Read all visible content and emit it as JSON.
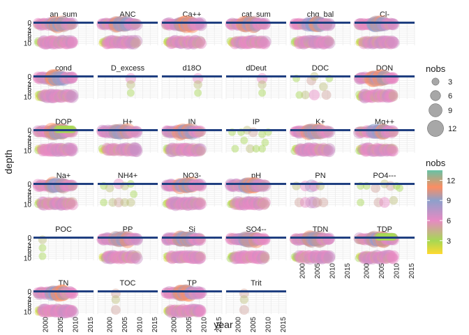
{
  "chart_data": {
    "type": "scatter",
    "facet_type": "small-multiples",
    "xlabel": "year",
    "ylabel": "depth",
    "x_ticks": [
      2000,
      2005,
      2010,
      2015
    ],
    "xlim": [
      1996,
      2016
    ],
    "y_tick_labels": [
      "0",
      "2",
      "4",
      "6",
      "8",
      "10"
    ],
    "ylim": [
      -0.5,
      11
    ],
    "y_reversed": true,
    "grid": true,
    "reference_line_depth": 0,
    "reference_line_color": "#1f3f80",
    "panels": [
      {
        "name": "an_sum",
        "cover": "full"
      },
      {
        "name": "ANC",
        "cover": "full"
      },
      {
        "name": "Ca++",
        "cover": "full"
      },
      {
        "name": "cat_sum",
        "cover": "full"
      },
      {
        "name": "chg_bal",
        "cover": "full"
      },
      {
        "name": "Cl-",
        "cover": "full"
      },
      {
        "name": "cond",
        "cover": "full"
      },
      {
        "name": "D_excess",
        "cover": "sparse",
        "points": [
          [
            2007,
            1,
            6,
            6
          ],
          [
            2007,
            4,
            4,
            5
          ],
          [
            2007,
            8,
            3,
            5
          ]
        ]
      },
      {
        "name": "d18O",
        "cover": "sparse",
        "points": [
          [
            2008,
            1,
            6,
            6
          ],
          [
            2008,
            4,
            4,
            5
          ],
          [
            2008,
            8,
            3,
            5
          ]
        ]
      },
      {
        "name": "dDeut",
        "cover": "sparse",
        "points": [
          [
            2008,
            1,
            6,
            6
          ],
          [
            2008,
            4,
            4,
            5
          ],
          [
            2008,
            8,
            3,
            5
          ]
        ]
      },
      {
        "name": "DOC",
        "cover": "medium",
        "points": [
          [
            1998,
            1,
            3,
            4
          ],
          [
            1999,
            9,
            3,
            4
          ],
          [
            2001,
            9,
            4,
            5
          ],
          [
            2003,
            2,
            5,
            6
          ],
          [
            2004,
            0,
            4,
            5
          ],
          [
            2004,
            9,
            6,
            6
          ],
          [
            2007,
            5,
            4,
            5
          ],
          [
            2008,
            9,
            5,
            6
          ],
          [
            2009,
            1,
            3,
            4
          ]
        ]
      },
      {
        "name": "DON",
        "cover": "full"
      },
      {
        "name": "DOP",
        "cover": "full",
        "topband": true
      },
      {
        "name": "H+",
        "cover": "full"
      },
      {
        "name": "IN",
        "cover": "full"
      },
      {
        "name": "IP",
        "cover": "medium",
        "points": [
          [
            1998,
            1,
            3,
            4
          ],
          [
            1999,
            9,
            3,
            4
          ],
          [
            2001,
            1,
            3,
            4
          ],
          [
            2002,
            5,
            3,
            4
          ],
          [
            2003,
            0,
            4,
            5
          ],
          [
            2004,
            9,
            4,
            5
          ],
          [
            2005,
            1,
            5,
            6
          ],
          [
            2006,
            9,
            3,
            4
          ],
          [
            2008,
            2,
            3,
            4
          ],
          [
            2008,
            9,
            3,
            4
          ],
          [
            2009,
            6,
            3,
            4
          ],
          [
            2010,
            1,
            3,
            4
          ]
        ]
      },
      {
        "name": "K+",
        "cover": "full"
      },
      {
        "name": "Mg++",
        "cover": "full"
      },
      {
        "name": "Na+",
        "cover": "full"
      },
      {
        "name": "NH4+",
        "cover": "medium",
        "points": [
          [
            1998,
            1,
            3,
            4
          ],
          [
            1998,
            9,
            3,
            4
          ],
          [
            2000,
            2,
            4,
            5
          ],
          [
            2001,
            9,
            4,
            5
          ],
          [
            2003,
            0,
            6,
            6
          ],
          [
            2003,
            9,
            5,
            6
          ],
          [
            2005,
            1,
            4,
            5
          ],
          [
            2005,
            9,
            4,
            5
          ],
          [
            2007,
            0,
            3,
            4
          ],
          [
            2007,
            9,
            4,
            5
          ],
          [
            2008,
            5,
            3,
            4
          ]
        ]
      },
      {
        "name": "NO3-",
        "cover": "full"
      },
      {
        "name": "pH",
        "cover": "full"
      },
      {
        "name": "PN",
        "cover": "medium",
        "points": [
          [
            1998,
            1,
            4,
            5
          ],
          [
            1999,
            9,
            5,
            6
          ],
          [
            2001,
            1,
            6,
            6
          ],
          [
            2001,
            9,
            6,
            7
          ],
          [
            2003,
            1,
            8,
            7
          ],
          [
            2003,
            9,
            7,
            7
          ],
          [
            2004,
            1,
            6,
            6
          ],
          [
            2004,
            9,
            7,
            7
          ],
          [
            2005,
            9,
            5,
            6
          ],
          [
            2006,
            1,
            4,
            5
          ],
          [
            2007,
            9,
            5,
            6
          ]
        ]
      },
      {
        "name": "PO4---",
        "cover": "medium",
        "points": [
          [
            1998,
            1,
            3,
            4
          ],
          [
            1998,
            9,
            3,
            4
          ],
          [
            2000,
            1,
            3,
            4
          ],
          [
            2003,
            2,
            5,
            6
          ],
          [
            2004,
            9,
            5,
            6
          ],
          [
            2006,
            0,
            4,
            5
          ],
          [
            2006,
            9,
            6,
            6
          ],
          [
            2008,
            1,
            5,
            6
          ],
          [
            2009,
            8,
            4,
            5
          ],
          [
            2010,
            1,
            3,
            4
          ],
          [
            2011,
            2,
            3,
            4
          ]
        ]
      },
      {
        "name": "POC",
        "cover": "sparse",
        "points": [
          [
            1999,
            1,
            4,
            5
          ],
          [
            1999,
            5,
            3,
            4
          ],
          [
            1999,
            9,
            3,
            5
          ]
        ]
      },
      {
        "name": "PP",
        "cover": "full"
      },
      {
        "name": "Si",
        "cover": "full"
      },
      {
        "name": "SO4--",
        "cover": "full"
      },
      {
        "name": "TDN",
        "cover": "full"
      },
      {
        "name": "TDP",
        "cover": "full",
        "topband": true
      },
      {
        "name": "TN",
        "cover": "full"
      },
      {
        "name": "TOC",
        "cover": "sparse",
        "points": [
          [
            2002,
            1,
            5,
            5
          ],
          [
            2002,
            4,
            4,
            5
          ],
          [
            2002,
            9,
            5,
            6
          ]
        ]
      },
      {
        "name": "TP",
        "cover": "full"
      },
      {
        "name": "Trit",
        "cover": "sparse",
        "points": [
          [
            2002,
            1,
            5,
            5
          ],
          [
            2002,
            4,
            4,
            5
          ],
          [
            2002,
            9,
            5,
            6
          ]
        ]
      }
    ],
    "legend_size": {
      "title": "nobs",
      "entries": [
        {
          "label": "3",
          "value": 3
        },
        {
          "label": "6",
          "value": 6
        },
        {
          "label": "9",
          "value": 9
        },
        {
          "label": "12",
          "value": 12
        }
      ],
      "placement": "right"
    },
    "legend_color": {
      "title": "nobs",
      "ticks": [
        {
          "label": "12",
          "value": 12
        },
        {
          "label": "9",
          "value": 9
        },
        {
          "label": "6",
          "value": 6
        },
        {
          "label": "3",
          "value": 3
        }
      ],
      "range": [
        1,
        13.5
      ],
      "gradient": [
        {
          "value": 1,
          "color": "#ffd92f"
        },
        {
          "value": 3,
          "color": "#a6d854"
        },
        {
          "value": 6,
          "color": "#e78ac3"
        },
        {
          "value": 9,
          "color": "#8da0cb"
        },
        {
          "value": 11,
          "color": "#fc8d62"
        },
        {
          "value": 13.5,
          "color": "#66c2a5"
        }
      ],
      "placement": "right"
    }
  }
}
